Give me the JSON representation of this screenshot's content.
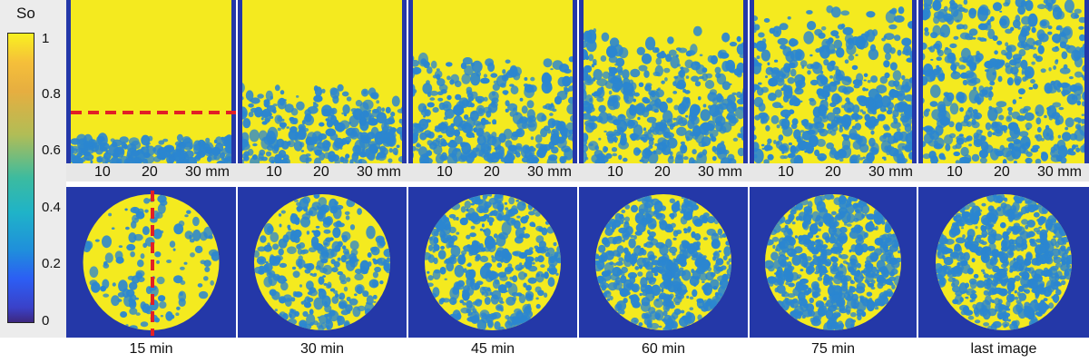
{
  "colorbar": {
    "title": "So",
    "ticks": [
      "1",
      "0.8",
      "0.6",
      "0.4",
      "0.2",
      "0"
    ]
  },
  "scale": {
    "labels": [
      "10",
      "20",
      "30 mm"
    ]
  },
  "timepoints": [
    {
      "label": "15 min",
      "front": 0.83
    },
    {
      "label": "30 min",
      "front": 0.53
    },
    {
      "label": "45 min",
      "front": 0.35
    },
    {
      "label": "60 min",
      "front": 0.18
    },
    {
      "label": "75 min",
      "front": 0.05
    },
    {
      "label": "last image",
      "front": 0.0
    }
  ],
  "colors": {
    "oil": "#f4ea1f",
    "water": "#2b86d0",
    "background": "#2438a8",
    "marker": "#e21f26"
  }
}
